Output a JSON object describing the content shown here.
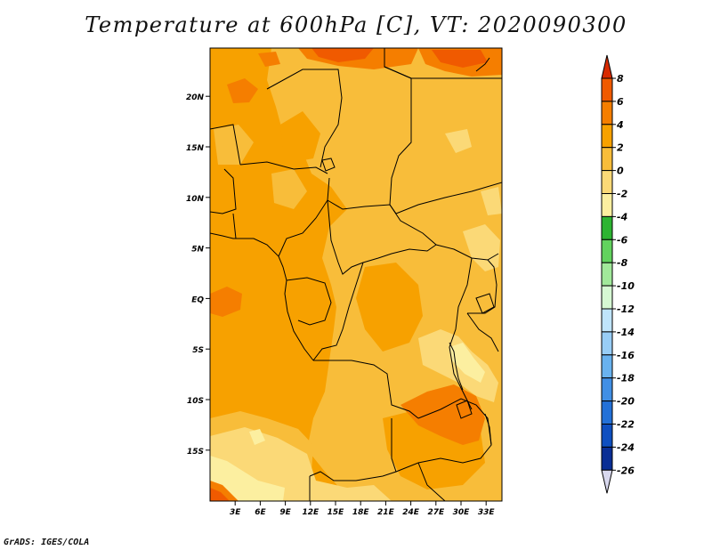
{
  "map": {
    "title": "Temperature at 600hPa [C], VT: 2020090300",
    "credit": "GrADS: IGES/COLA",
    "lat_ticks": [
      {
        "value": 20,
        "label": "20N"
      },
      {
        "value": 15,
        "label": "15N"
      },
      {
        "value": 10,
        "label": "10N"
      },
      {
        "value": 5,
        "label": "5N"
      },
      {
        "value": 0,
        "label": "EQ"
      },
      {
        "value": -5,
        "label": "5S"
      },
      {
        "value": -10,
        "label": "10S"
      },
      {
        "value": -15,
        "label": "15S"
      }
    ],
    "lon_ticks": [
      {
        "value": 3,
        "label": "3E"
      },
      {
        "value": 6,
        "label": "6E"
      },
      {
        "value": 9,
        "label": "9E"
      },
      {
        "value": 12,
        "label": "12E"
      },
      {
        "value": 15,
        "label": "15E"
      },
      {
        "value": 18,
        "label": "18E"
      },
      {
        "value": 21,
        "label": "21E"
      },
      {
        "value": 24,
        "label": "24E"
      },
      {
        "value": 27,
        "label": "27E"
      },
      {
        "value": 30,
        "label": "30E"
      },
      {
        "value": 33,
        "label": "33E"
      }
    ],
    "colorbar": {
      "labels": [
        "8",
        "6",
        "4",
        "2",
        "0",
        "-2",
        "-4",
        "-6",
        "-8",
        "-10",
        "-12",
        "-14",
        "-16",
        "-18",
        "-20",
        "-22",
        "-24",
        "-26"
      ],
      "colors": [
        "#d72a00",
        "#f05a00",
        "#f57e00",
        "#f7a100",
        "#f8bd3a",
        "#fbd977",
        "#fcefa0",
        "#2db432",
        "#62d25e",
        "#a1e89a",
        "#d6f8d3",
        "#bfe4fb",
        "#98cdf6",
        "#69b2ef",
        "#418fe5",
        "#2371d8",
        "#0f4fc0",
        "#0a2e95",
        "#05136b",
        "#d8d8ee"
      ],
      "top_arrow_color": "#d72a00",
      "bottom_arrow_color": "#d8d8ee"
    },
    "fill_colors": {
      "t_2_4": "#f7a100",
      "t_0_2": "#f8bd3a",
      "t_m2_0": "#fbd977",
      "t_m4_m2": "#fcefa0",
      "t_4_6": "#f57e00",
      "t_6_8": "#f05a00"
    }
  }
}
